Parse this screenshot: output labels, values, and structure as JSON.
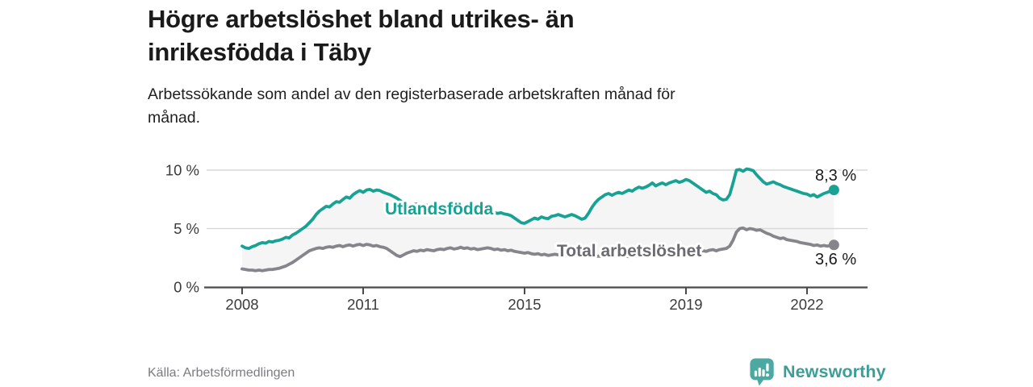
{
  "header": {
    "title_lines": [
      "Högre arbetslöshet bland utrikes- än",
      "inrikesfödda i Täby"
    ],
    "subtitle_lines": [
      "Arbetssökande som andel av den registerbaserade arbetskraften månad för",
      "månad."
    ]
  },
  "footer": {
    "source": "Källa: Arbetsförmedlingen",
    "brand_name": "Newsworthy",
    "brand_text_color": "#3d9e97",
    "brand_icon_color": "#4ba9a1"
  },
  "chart_data": {
    "type": "line",
    "title": "Högre arbetslöshet bland utrikes- än inrikesfödda i Täby",
    "subtitle": "Arbetssökande som andel av den registerbaserade arbetskraften månad för månad.",
    "x_start": "2008-01",
    "x_end": "2022-09",
    "x_interval": "monthly",
    "grid": "horizontal",
    "legend_position": "inline-labels",
    "ylim": [
      0,
      10.8
    ],
    "band_fill": "#f5f5f5",
    "axis_color": "#4a4a4a",
    "grid_color": "#d9d9d9",
    "tick_label_color": "#3b3b3b",
    "end_label_color": "#1a1a1a",
    "x_ticks": [
      {
        "value": 2008,
        "label": "2008"
      },
      {
        "value": 2011,
        "label": "2011"
      },
      {
        "value": 2015,
        "label": "2015"
      },
      {
        "value": 2019,
        "label": "2019"
      },
      {
        "value": 2022,
        "label": "2022"
      }
    ],
    "y_ticks": [
      {
        "value": 0,
        "label": "0 %"
      },
      {
        "value": 5,
        "label": "5 %"
      },
      {
        "value": 10,
        "label": "10 %"
      }
    ],
    "series": [
      {
        "name": "Utlandsfödda",
        "color": "#17a294",
        "label_color": "#17a294",
        "end_label": "8,3 %",
        "end_value": 8.3,
        "values": [
          3.5,
          3.35,
          3.3,
          3.45,
          3.55,
          3.7,
          3.8,
          3.75,
          3.9,
          3.85,
          3.95,
          4.0,
          4.1,
          4.25,
          4.2,
          4.45,
          4.6,
          4.8,
          5.0,
          5.2,
          5.5,
          5.8,
          6.2,
          6.5,
          6.7,
          6.9,
          6.85,
          7.1,
          7.3,
          7.25,
          7.5,
          7.7,
          7.6,
          7.9,
          8.1,
          8.25,
          8.1,
          8.3,
          8.35,
          8.2,
          8.3,
          8.25,
          8.1,
          8.0,
          7.9,
          7.75,
          7.6,
          7.4,
          7.2,
          7.0,
          6.85,
          7.05,
          7.1,
          7.0,
          6.95,
          7.0,
          6.9,
          6.85,
          6.8,
          6.75,
          6.8,
          6.7,
          6.75,
          6.65,
          6.7,
          6.6,
          6.55,
          6.6,
          6.5,
          6.55,
          6.45,
          6.5,
          6.45,
          6.4,
          6.45,
          6.35,
          6.3,
          6.35,
          6.25,
          6.2,
          6.1,
          5.9,
          5.7,
          5.5,
          5.45,
          5.6,
          5.75,
          5.9,
          5.8,
          6.0,
          5.9,
          5.85,
          6.05,
          6.1,
          6.2,
          6.1,
          6.0,
          6.1,
          6.2,
          6.1,
          5.95,
          5.8,
          5.9,
          6.3,
          6.8,
          7.2,
          7.5,
          7.7,
          7.9,
          8.0,
          7.85,
          8.0,
          8.1,
          8.0,
          8.15,
          8.3,
          8.2,
          8.4,
          8.55,
          8.45,
          8.55,
          8.7,
          8.9,
          8.65,
          8.8,
          8.9,
          8.75,
          8.9,
          9.0,
          9.1,
          8.95,
          9.05,
          9.2,
          9.1,
          8.9,
          8.7,
          8.5,
          8.3,
          8.1,
          8.2,
          8.0,
          7.9,
          7.6,
          7.45,
          7.5,
          7.9,
          8.9,
          10.0,
          10.05,
          9.9,
          10.1,
          10.05,
          9.95,
          9.6,
          9.3,
          9.0,
          8.8,
          8.9,
          9.0,
          8.85,
          8.75,
          8.6,
          8.5,
          8.4,
          8.3,
          8.2,
          8.1,
          8.0,
          7.95,
          7.8,
          7.9,
          7.7,
          7.85,
          8.0,
          8.1,
          8.2,
          8.3
        ]
      },
      {
        "name": "Total arbetslöshet",
        "color": "#85858b",
        "label_color": "#6b6b72",
        "end_label": "3,6 %",
        "end_value": 3.6,
        "values": [
          1.55,
          1.5,
          1.45,
          1.45,
          1.4,
          1.45,
          1.4,
          1.45,
          1.5,
          1.5,
          1.55,
          1.6,
          1.7,
          1.8,
          1.95,
          2.1,
          2.3,
          2.5,
          2.7,
          2.9,
          3.1,
          3.2,
          3.3,
          3.35,
          3.3,
          3.4,
          3.45,
          3.4,
          3.5,
          3.55,
          3.45,
          3.55,
          3.6,
          3.5,
          3.6,
          3.65,
          3.55,
          3.65,
          3.6,
          3.5,
          3.55,
          3.45,
          3.4,
          3.3,
          3.1,
          2.9,
          2.7,
          2.6,
          2.75,
          2.9,
          3.0,
          3.1,
          3.05,
          3.15,
          3.1,
          3.2,
          3.15,
          3.1,
          3.2,
          3.25,
          3.2,
          3.3,
          3.35,
          3.25,
          3.3,
          3.4,
          3.3,
          3.35,
          3.25,
          3.3,
          3.2,
          3.25,
          3.3,
          3.35,
          3.3,
          3.2,
          3.25,
          3.15,
          3.2,
          3.1,
          3.15,
          3.05,
          3.0,
          2.95,
          2.9,
          2.95,
          2.85,
          2.8,
          2.85,
          2.75,
          2.8,
          2.7,
          2.75,
          2.8,
          2.75,
          2.7,
          2.75,
          2.7,
          2.8,
          2.75,
          2.65,
          2.7,
          2.6,
          2.65,
          2.7,
          2.6,
          2.65,
          2.6,
          2.65,
          2.6,
          2.7,
          2.65,
          2.55,
          2.6,
          2.65,
          2.6,
          2.7,
          2.65,
          2.75,
          2.7,
          2.75,
          2.7,
          2.8,
          2.75,
          2.7,
          2.8,
          2.75,
          2.85,
          2.8,
          2.9,
          2.85,
          2.9,
          2.95,
          3.0,
          2.95,
          3.05,
          3.0,
          3.1,
          3.05,
          3.15,
          3.2,
          3.1,
          3.2,
          3.25,
          3.3,
          3.5,
          4.0,
          4.7,
          5.0,
          5.05,
          4.9,
          5.0,
          4.95,
          4.85,
          4.9,
          4.75,
          4.6,
          4.5,
          4.35,
          4.25,
          4.15,
          4.2,
          4.05,
          4.0,
          3.95,
          3.9,
          3.8,
          3.75,
          3.7,
          3.65,
          3.55,
          3.6,
          3.5,
          3.55,
          3.5,
          3.55,
          3.6
        ]
      }
    ]
  }
}
